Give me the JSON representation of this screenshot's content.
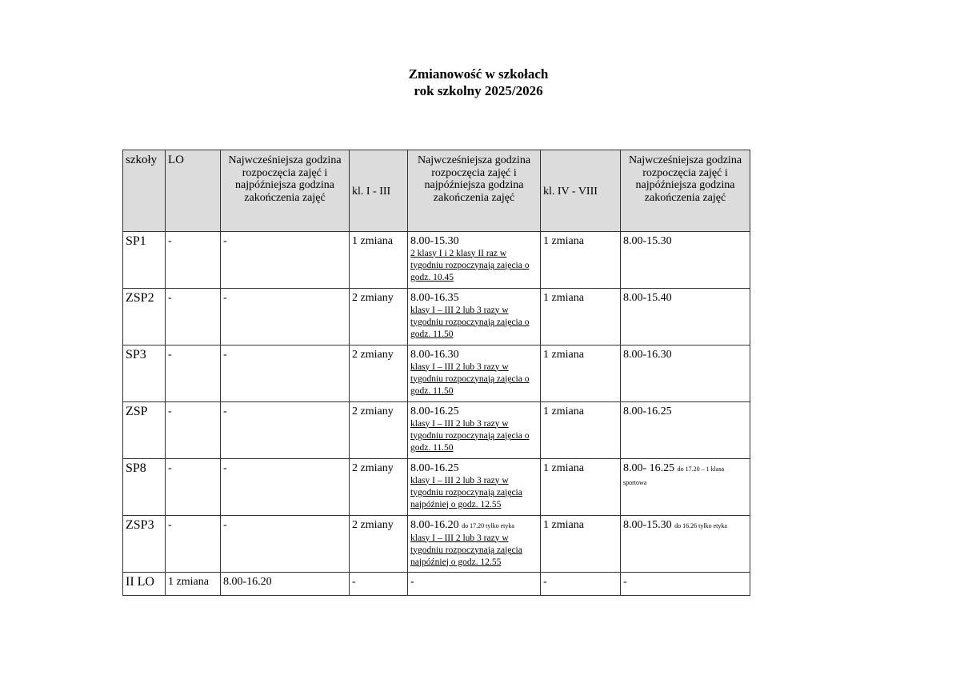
{
  "title": {
    "line1": "Zmianowość w szkołach",
    "line2": "rok szkolny 2025/2026"
  },
  "table": {
    "headers": [
      "szkoły",
      "LO",
      "Najwcześniejsza godzina rozpoczęcia zajęć i najpóźniejsza godzina zakończenia zajęć",
      "kl. I - III",
      "Najwcześniejsza godzina rozpoczęcia zajęć i najpóźniejsza godzina zakończenia zajęć",
      "kl. IV - VIII",
      "Najwcześniejsza godzina rozpoczęcia zajęć i najpóźniejsza godzina zakończenia zajęć"
    ],
    "rows": [
      {
        "school": "SP1",
        "lo": "-",
        "lo_hours": "-",
        "k13": "1 zmiana",
        "k13_hours": "8.00-15.30",
        "k13_extra": "",
        "k13_note": "2 klasy I i 2 klasy II raz w tygodniu rozpoczynają zajęcia o godz. 10.45",
        "k48": "1 zmiana",
        "k48_hours": "8.00-15.30",
        "k48_extra": ""
      },
      {
        "school": "ZSP2",
        "lo": "-",
        "lo_hours": "-",
        "k13": "2 zmiany",
        "k13_hours": "8.00-16.35",
        "k13_extra": "",
        "k13_note": "klasy I – III 2 lub 3 razy w tygodniu rozpoczynają zajęcia o godz. 11.50",
        "k48": "1 zmiana",
        "k48_hours": "8.00-15.40",
        "k48_extra": ""
      },
      {
        "school": "SP3",
        "lo": "-",
        "lo_hours": "-",
        "k13": "2 zmiany",
        "k13_hours": "8.00-16.30",
        "k13_extra": "",
        "k13_note": "klasy I – III 2 lub 3 razy w tygodniu rozpoczynają zajęcia o godz. 11.50",
        "k48": "1 zmiana",
        "k48_hours": "8.00-16.30",
        "k48_extra": ""
      },
      {
        "school": "ZSP",
        "lo": "-",
        "lo_hours": "-",
        "k13": "2 zmiany",
        "k13_hours": "8.00-16.25",
        "k13_extra": "",
        "k13_note": "klasy I – III 2 lub 3 razy w tygodniu rozpoczynają zajęcia o godz. 11.50",
        "k48": "1 zmiana",
        "k48_hours": "8.00-16.25",
        "k48_extra": ""
      },
      {
        "school": "SP8",
        "lo": "-",
        "lo_hours": "-",
        "k13": "2 zmiany",
        "k13_hours": "8.00-16.25",
        "k13_extra": "",
        "k13_note": "klasy I – III 2 lub 3 razy w tygodniu rozpoczynają zajęcia najpóźniej o godz. 12.55",
        "k48": "1 zmiana",
        "k48_hours": "8.00- 16.25",
        "k48_extra": "do 17.20 – 1 klasa sportowa"
      },
      {
        "school": "ZSP3",
        "lo": "-",
        "lo_hours": "-",
        "k13": "2 zmiany",
        "k13_hours": "8.00-16.20",
        "k13_extra": "do 17.20 tylko etyka",
        "k13_note": "klasy I – III 2 lub 3 razy w tygodniu rozpoczynają zajęcia najpóźniej o godz. 12.55",
        "k48": "1 zmiana",
        "k48_hours": "8.00-15.30",
        "k48_extra": "do 16.26 tylko etyka"
      },
      {
        "school": "II LO",
        "lo": "1 zmiana",
        "lo_hours": "8.00-16.20",
        "k13": "-",
        "k13_hours": "-",
        "k13_extra": "",
        "k13_note": "",
        "k48": "-",
        "k48_hours": "-",
        "k48_extra": ""
      }
    ]
  }
}
